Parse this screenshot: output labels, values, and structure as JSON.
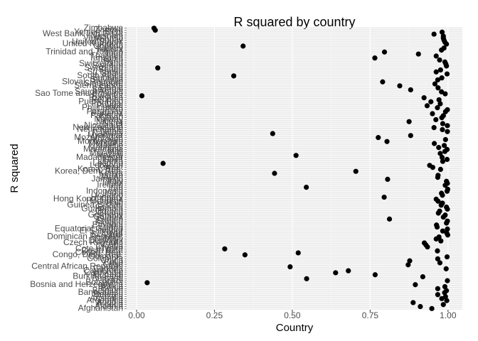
{
  "chart_data": {
    "type": "dot",
    "title": "R squared by country",
    "x_label": "Country",
    "y_label": "R squared",
    "categories": [
      "Afghanistan",
      "Albania",
      "Algeria",
      "Angola",
      "Argentina",
      "Australia",
      "Austria",
      "Bahrain",
      "Bangladesh",
      "Belgium",
      "Benin",
      "Bolivia",
      "Bosnia and Herzegovina",
      "Botswana",
      "Brazil",
      "Bulgaria",
      "Burkina Faso",
      "Burundi",
      "Cambodia",
      "Cameroon",
      "Canada",
      "Central African Republic",
      "Chad",
      "Chile",
      "China",
      "Colombia",
      "Comoros",
      "Congo, Dem. Rep.",
      "Congo, Rep.",
      "Costa Rica",
      "Cote d'Ivoire",
      "Croatia",
      "Cuba",
      "Czech Republic",
      "Denmark",
      "Djibouti",
      "Dominican Republic",
      "Ecuador",
      "Egypt",
      "El Salvador",
      "Equatorial Guinea",
      "Eritrea",
      "Ethiopia",
      "Finland",
      "France",
      "Gabon",
      "Gambia",
      "Germany",
      "Ghana",
      "Greece",
      "Guatemala",
      "Guinea",
      "Guinea-Bissau",
      "Haiti",
      "Honduras",
      "Hong Kong, China",
      "Hungary",
      "Iceland",
      "India",
      "Indonesia",
      "Iran",
      "Iraq",
      "Ireland",
      "Israel",
      "Italy",
      "Jamaica",
      "Japan",
      "Jordan",
      "Kenya",
      "Korea, Dem. Rep.",
      "Korea, Rep.",
      "Kuwait",
      "Lebanon",
      "Lesotho",
      "Liberia",
      "Libya",
      "Madagascar",
      "Malawi",
      "Malaysia",
      "Mali",
      "Mauritania",
      "Mauritius",
      "Mexico",
      "Mongolia",
      "Montenegro",
      "Morocco",
      "Mozambique",
      "Myanmar",
      "Namibia",
      "Nepal",
      "Netherlands",
      "New Zealand",
      "Nicaragua",
      "Niger",
      "Nigeria",
      "Norway",
      "Oman",
      "Pakistan",
      "Panama",
      "Paraguay",
      "Peru",
      "Philippines",
      "Poland",
      "Portugal",
      "Puerto Rico",
      "Reunion",
      "Romania",
      "Rwanda",
      "Sao Tome and Principe",
      "Saudi Arabia",
      "Senegal",
      "Serbia",
      "Sierra Leone",
      "Singapore",
      "Slovak Republic",
      "Slovenia",
      "Somalia",
      "South Africa",
      "Spain",
      "Sri Lanka",
      "Sudan",
      "Swaziland",
      "Sweden",
      "Switzerland",
      "Syria",
      "Taiwan",
      "Tanzania",
      "Thailand",
      "Togo",
      "Trinidad and Tobago",
      "Tunisia",
      "Turkey",
      "Uganda",
      "United Kingdom",
      "United States",
      "Uruguay",
      "Venezuela",
      "Vietnam",
      "West Bank and Gaza",
      "Yemen, Rep.",
      "Zambia",
      "Zimbabwe"
    ],
    "values": [
      0.948,
      0.911,
      0.985,
      0.888,
      0.996,
      0.98,
      0.992,
      0.967,
      0.989,
      0.995,
      0.967,
      0.99,
      0.895,
      0.034,
      0.998,
      0.546,
      0.919,
      0.766,
      0.639,
      0.68,
      0.994,
      0.493,
      0.872,
      0.974,
      0.877,
      0.967,
      0.997,
      0.348,
      0.519,
      0.966,
      0.283,
      0.934,
      0.929,
      0.924,
      0.977,
      0.962,
      0.971,
      0.999,
      0.996,
      0.983,
      0.998,
      0.965,
      0.963,
      0.995,
      0.998,
      0.812,
      0.985,
      0.991,
      0.969,
      0.973,
      0.998,
      0.995,
      0.978,
      0.982,
      0.968,
      0.962,
      0.795,
      0.982,
      0.979,
      0.997,
      0.999,
      0.545,
      0.991,
      0.998,
      0.995,
      0.806,
      0.967,
      0.968,
      0.443,
      0.704,
      0.976,
      0.951,
      0.941,
      0.085,
      0.983,
      0.997,
      0.981,
      0.512,
      0.975,
      0.99,
      0.997,
      0.97,
      0.988,
      0.956,
      0.804,
      0.992,
      0.776,
      0.88,
      0.437,
      0.998,
      0.982,
      0.955,
      0.998,
      0.983,
      0.875,
      0.961,
      0.98,
      0.985,
      0.95,
      0.992,
      0.998,
      0.966,
      0.933,
      0.975,
      0.945,
      0.971,
      0.923,
      0.017,
      0.991,
      0.979,
      0.88,
      0.968,
      0.845,
      0.958,
      0.79,
      0.967,
      0.98,
      0.312,
      0.997,
      0.962,
      0.976,
      0.068,
      0.995,
      0.993,
      0.99,
      0.973,
      0.765,
      0.962,
      0.905,
      0.796,
      0.979,
      0.987,
      0.342,
      0.995,
      0.99,
      0.987,
      0.985,
      0.985,
      0.955,
      0.981,
      0.06,
      0.056
    ],
    "color": "#000000",
    "xlim": [
      -0.032,
      1.046
    ],
    "xticks": [
      {
        "value": 0,
        "label": "0.00"
      },
      {
        "value": 0.25,
        "label": "0.25"
      },
      {
        "value": 0.5,
        "label": "0.50"
      },
      {
        "value": 0.75,
        "label": "0.75"
      },
      {
        "value": 1,
        "label": "1.00"
      }
    ],
    "grid": true
  }
}
